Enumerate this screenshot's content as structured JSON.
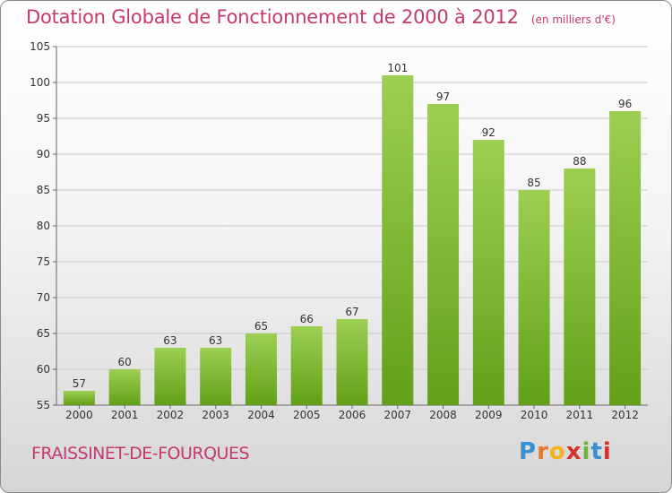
{
  "header": {
    "title": "Dotation Globale de Fonctionnement de 2000 à 2012",
    "unit": "(en milliers d'€)"
  },
  "footer": {
    "commune": "FRAISSINET-DE-FOURQUES",
    "logo_text": "Proxiti",
    "logo_colors": [
      "#3a8fd0",
      "#e8762c",
      "#f2b31a",
      "#d8312c",
      "#6cb43f",
      "#3a8fd0",
      "#d8312c"
    ]
  },
  "colors": {
    "bar_top": "#9ccf52",
    "bar_bottom": "#62a019",
    "title": "#c4396f",
    "grid": "#c8c8c8"
  },
  "chart_data": {
    "type": "bar",
    "title": "Dotation Globale de Fonctionnement de 2000 à 2012",
    "subtitle": "(en milliers d'€)",
    "xlabel": "",
    "ylabel": "",
    "ylim": [
      55,
      105
    ],
    "yticks": [
      55,
      60,
      65,
      70,
      75,
      80,
      85,
      90,
      95,
      100,
      105
    ],
    "grid": true,
    "categories": [
      "2000",
      "2001",
      "2002",
      "2003",
      "2004",
      "2005",
      "2006",
      "2007",
      "2008",
      "2009",
      "2010",
      "2011",
      "2012"
    ],
    "values": [
      57,
      60,
      63,
      63,
      65,
      66,
      67,
      101,
      97,
      92,
      85,
      88,
      96
    ]
  }
}
